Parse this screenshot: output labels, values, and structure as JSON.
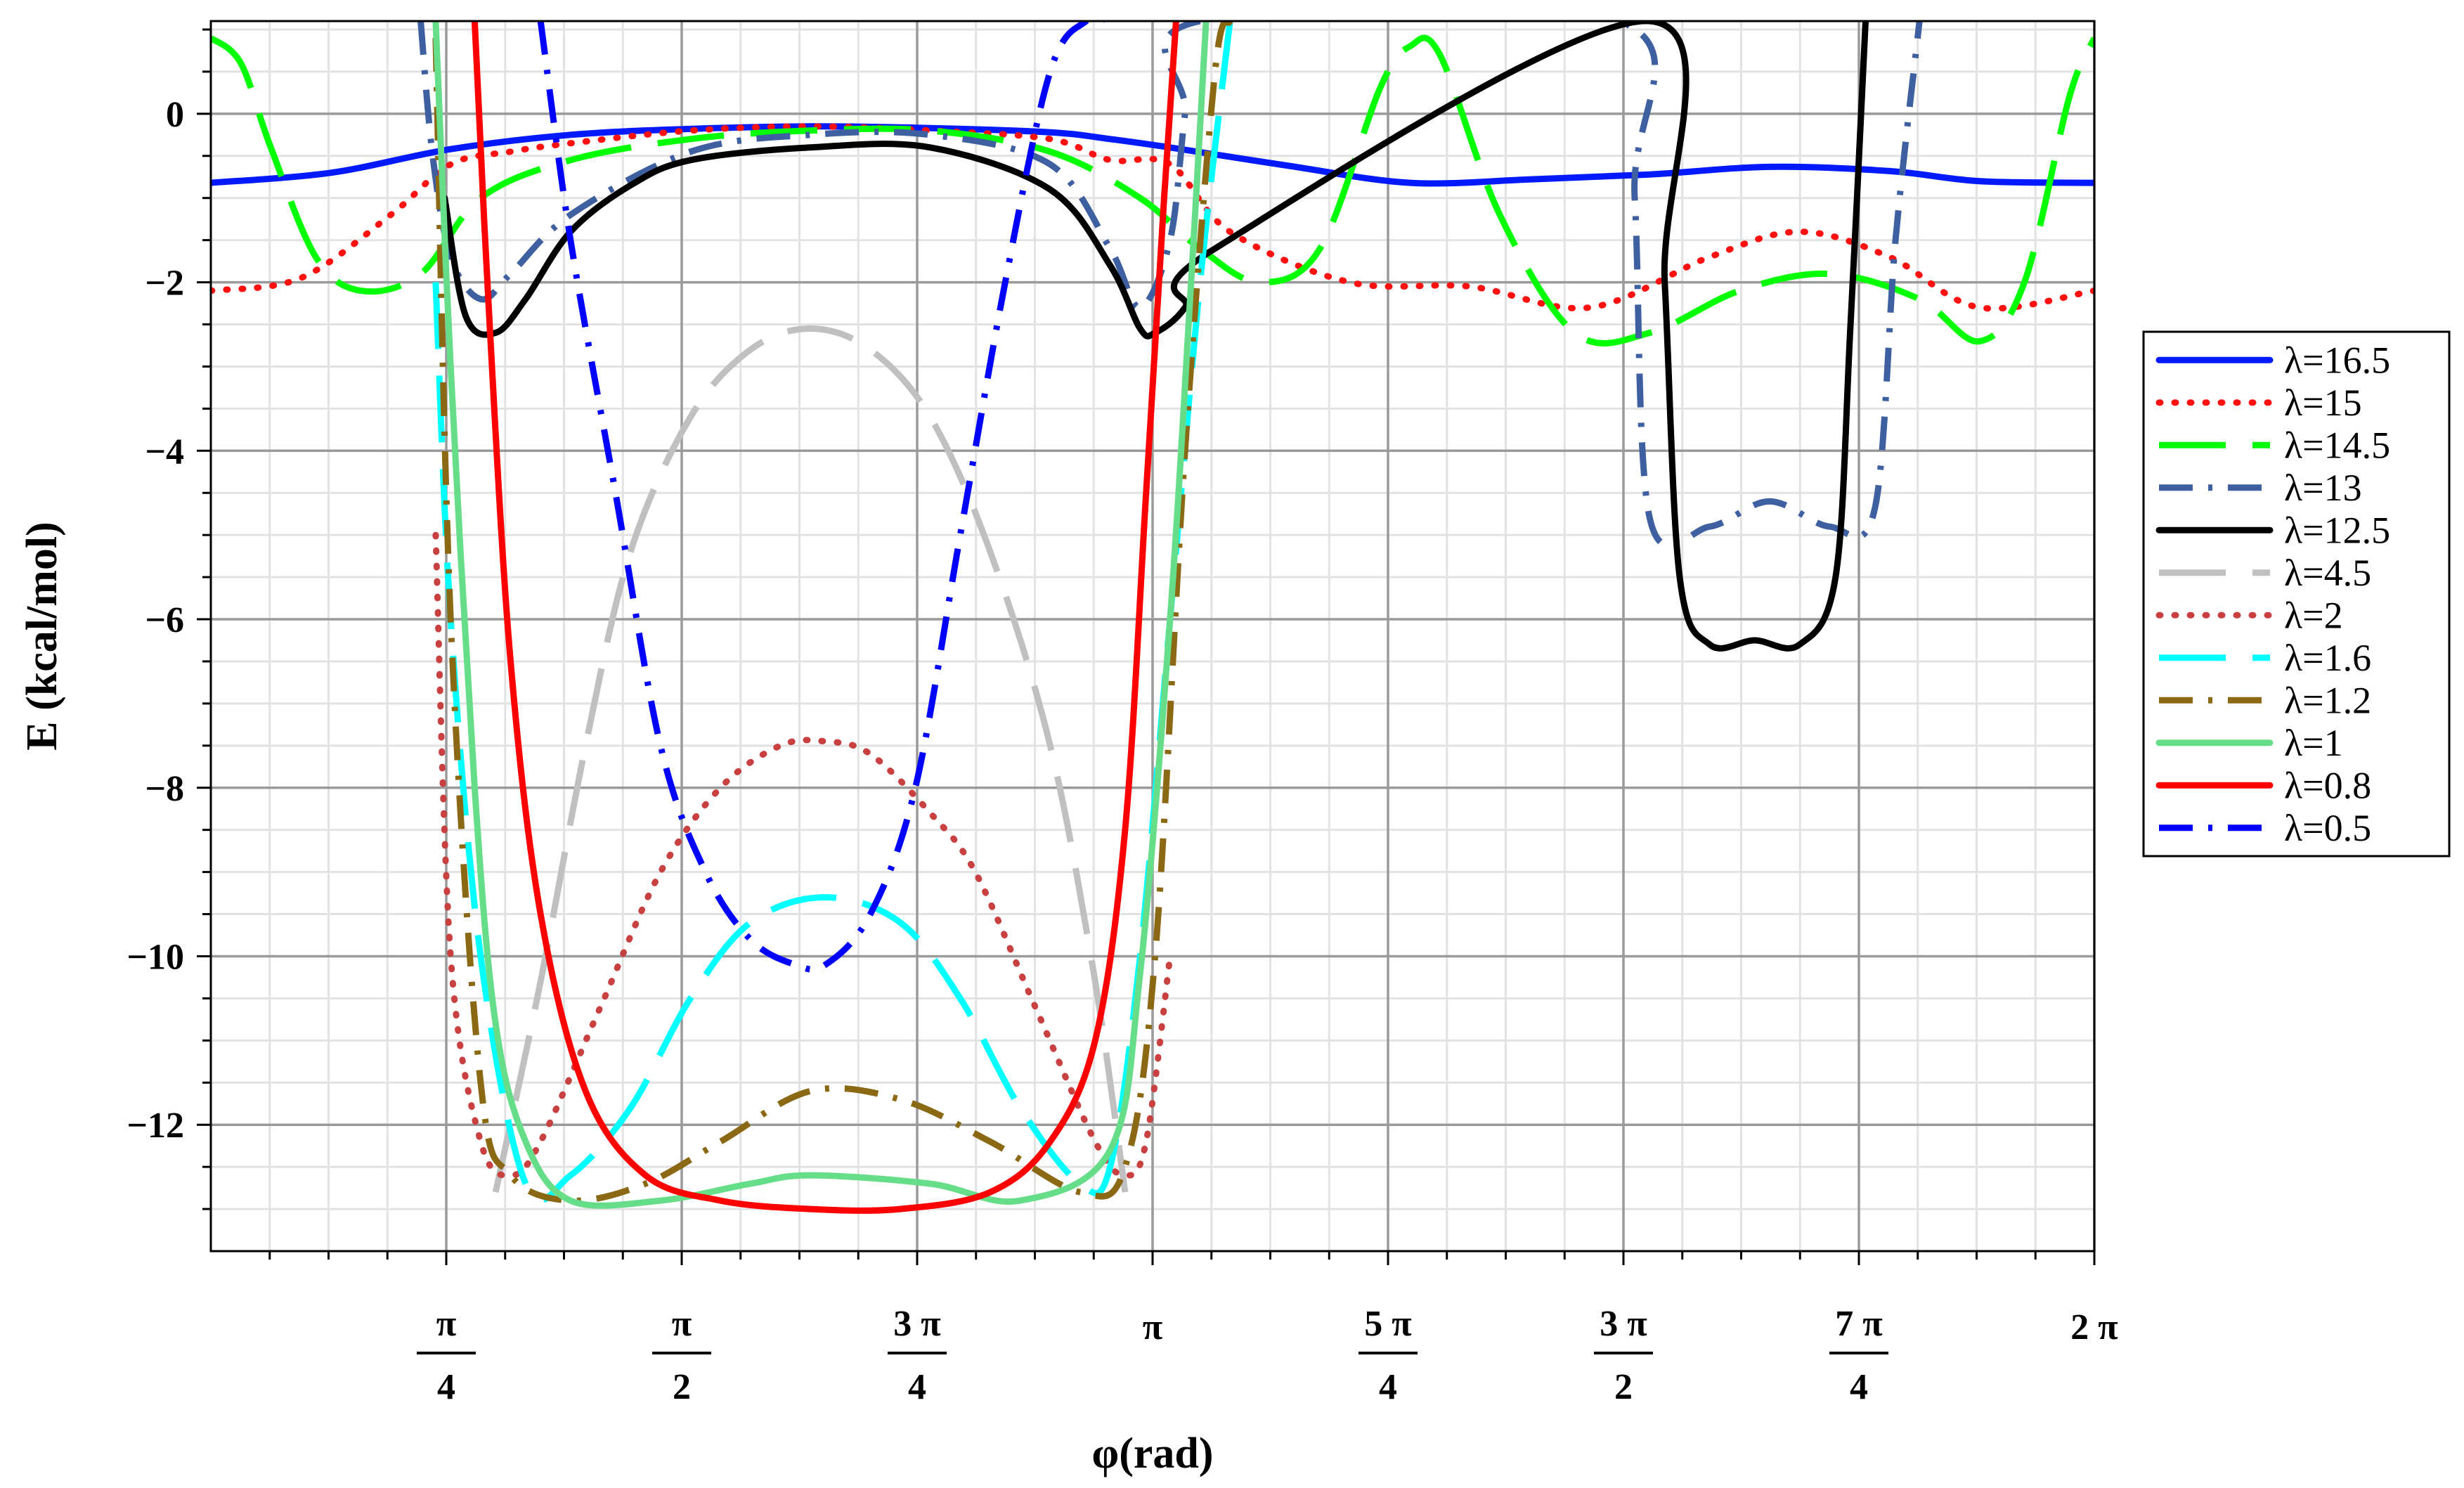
{
  "chart_data": {
    "type": "line",
    "xlabel": "φ(rad)",
    "ylabel": "E (kcal/mol)",
    "xlim": [
      0,
      6.2832
    ],
    "ylim": [
      -13.5,
      1.1
    ],
    "grid": true,
    "legend_position": "right",
    "x_ticks": [
      {
        "value": 0.7854,
        "num": "π",
        "den": "4"
      },
      {
        "value": 1.5708,
        "num": "π",
        "den": "2"
      },
      {
        "value": 2.3562,
        "num": "3 π",
        "den": "4"
      },
      {
        "value": 3.1416,
        "label": "π"
      },
      {
        "value": 3.927,
        "num": "5 π",
        "den": "4"
      },
      {
        "value": 4.7124,
        "num": "3 π",
        "den": "2"
      },
      {
        "value": 5.4978,
        "num": "7 π",
        "den": "4"
      },
      {
        "value": 6.2832,
        "label": "2 π"
      }
    ],
    "y_ticks": [
      {
        "value": 0,
        "label": "0"
      },
      {
        "value": -2,
        "label": "−2"
      },
      {
        "value": -4,
        "label": "−4"
      },
      {
        "value": -6,
        "label": "−6"
      },
      {
        "value": -8,
        "label": "−8"
      },
      {
        "value": -10,
        "label": "−10"
      },
      {
        "value": -12,
        "label": "−12"
      }
    ],
    "series": [
      {
        "name": "λ=16.5",
        "color": "#0019ff",
        "dash": "solid",
        "x": [
          0,
          0.4,
          0.8,
          1.2,
          1.6,
          2.0,
          2.4,
          2.8,
          3.0,
          3.2,
          3.6,
          4.0,
          4.4,
          4.8,
          5.2,
          5.6,
          5.9,
          6.2832
        ],
        "y": [
          -0.82,
          -0.7,
          -0.42,
          -0.25,
          -0.18,
          -0.15,
          -0.17,
          -0.22,
          -0.3,
          -0.4,
          -0.62,
          -0.82,
          -0.78,
          -0.72,
          -0.63,
          -0.68,
          -0.8,
          -0.82
        ]
      },
      {
        "name": "λ=15",
        "color": "#ff1010",
        "dash": "dot",
        "x": [
          0,
          0.3,
          0.6,
          0.8,
          1.0,
          1.2,
          1.6,
          2.0,
          2.4,
          2.8,
          3.0,
          3.2,
          3.4,
          3.8,
          4.2,
          4.6,
          5.0,
          5.3,
          5.6,
          5.9,
          6.2832
        ],
        "y": [
          -2.1,
          -1.95,
          -1.2,
          -0.6,
          -0.45,
          -0.35,
          -0.2,
          -0.15,
          -0.2,
          -0.3,
          -0.55,
          -0.6,
          -1.4,
          -2.0,
          -2.05,
          -2.3,
          -1.7,
          -1.4,
          -1.7,
          -2.3,
          -2.1
        ]
      },
      {
        "name": "λ=14.5",
        "color": "#00ff00",
        "dash": "longdash",
        "x": [
          0,
          0.1,
          0.2,
          0.35,
          0.5,
          0.7,
          0.9,
          1.2,
          1.6,
          2.0,
          2.4,
          2.8,
          3.1,
          3.3,
          3.5,
          3.7,
          3.9,
          4.0,
          4.1,
          4.3,
          4.55,
          4.8,
          5.1,
          5.4,
          5.7,
          5.9,
          6.05,
          6.2,
          6.2832
        ],
        "y": [
          0.9,
          0.6,
          -0.4,
          -1.7,
          -2.1,
          -1.9,
          -1.0,
          -0.55,
          -0.3,
          -0.2,
          -0.2,
          -0.45,
          -1.0,
          -1.6,
          -2.0,
          -1.6,
          0.3,
          0.8,
          0.7,
          -1.2,
          -2.6,
          -2.6,
          -2.1,
          -1.9,
          -2.2,
          -2.7,
          -2.0,
          0.2,
          0.9
        ]
      },
      {
        "name": "λ=13",
        "color": "#3e5fa0",
        "dash": "dashdot",
        "x": [
          0.7,
          0.74,
          0.8,
          0.9,
          1.0,
          1.2,
          1.6,
          2.0,
          2.4,
          2.8,
          3.0,
          3.1,
          3.2,
          3.25,
          3.3,
          4.7,
          4.75,
          4.8,
          5.0,
          5.2,
          5.4,
          5.55,
          5.62,
          5.7
        ],
        "y": [
          1.1,
          -0.5,
          -1.7,
          -2.2,
          -1.9,
          -1.2,
          -0.45,
          -0.25,
          -0.25,
          -0.6,
          -1.6,
          -2.3,
          -1.5,
          0.0,
          1.1,
          1.1,
          -1.0,
          -4.8,
          -4.9,
          -4.6,
          -4.9,
          -4.7,
          -1.5,
          1.1
        ]
      },
      {
        "name": "λ=12.5",
        "color": "#000000",
        "dash": "solid",
        "x": [
          0.78,
          0.85,
          0.95,
          1.05,
          1.2,
          1.4,
          1.6,
          2.0,
          2.4,
          2.8,
          3.0,
          3.1,
          3.15,
          3.25,
          3.35,
          4.8,
          4.85,
          4.9,
          5.0,
          5.15,
          5.3,
          5.42,
          5.47,
          5.52
        ],
        "y": [
          -1.0,
          -2.4,
          -2.6,
          -2.2,
          -1.4,
          -0.85,
          -0.55,
          -0.4,
          -0.4,
          -0.9,
          -1.8,
          -2.55,
          -2.6,
          -2.3,
          -1.6,
          1.1,
          -2.0,
          -5.5,
          -6.3,
          -6.25,
          -6.3,
          -5.5,
          -2.5,
          1.1
        ]
      },
      {
        "name": "λ=4.5",
        "color": "#c0c0c0",
        "dash": "longdash",
        "x": [
          0.95,
          1.1,
          1.25,
          1.4,
          1.6,
          1.8,
          2.0,
          2.2,
          2.4,
          2.6,
          2.8,
          2.95,
          3.05
        ],
        "y": [
          -12.8,
          -10.3,
          -7.5,
          -5.2,
          -3.6,
          -2.8,
          -2.55,
          -2.8,
          -3.6,
          -5.2,
          -7.5,
          -10.3,
          -12.8
        ]
      },
      {
        "name": "λ=2",
        "color": "#c84040",
        "dash": "dot",
        "x": [
          0.75,
          0.8,
          0.9,
          1.0,
          1.1,
          1.3,
          1.5,
          1.7,
          1.9,
          2.05,
          2.2,
          2.4,
          2.55,
          2.75,
          2.95,
          3.05,
          3.12,
          3.2
        ],
        "y": [
          -5.0,
          -10.0,
          -12.2,
          -12.6,
          -12.2,
          -10.6,
          -9.0,
          -8.0,
          -7.5,
          -7.45,
          -7.6,
          -8.3,
          -9.0,
          -10.6,
          -12.2,
          -12.6,
          -12.2,
          -10.0
        ]
      },
      {
        "name": "λ=1.6",
        "color": "#00ffff",
        "dash": "longdash",
        "x": [
          0.75,
          0.8,
          0.9,
          1.05,
          1.2,
          1.4,
          1.6,
          1.8,
          2.05,
          2.3,
          2.5,
          2.7,
          2.9,
          3.0,
          3.1,
          3.2,
          3.3,
          3.4
        ],
        "y": [
          -2.0,
          -6.0,
          -10.0,
          -12.7,
          -12.6,
          -11.8,
          -10.5,
          -9.6,
          -9.3,
          -9.6,
          -10.5,
          -11.8,
          -12.7,
          -12.5,
          -10.0,
          -6.0,
          -2.0,
          1.1
        ]
      },
      {
        "name": "λ=1.2",
        "color": "#8b6914",
        "dash": "dashdot",
        "x": [
          0.75,
          0.8,
          0.9,
          1.0,
          1.2,
          1.45,
          1.7,
          2.0,
          2.3,
          2.6,
          2.9,
          3.05,
          3.15,
          3.25,
          3.35,
          3.4
        ],
        "y": [
          0.9,
          -6.0,
          -11.5,
          -12.6,
          -12.9,
          -12.7,
          -12.2,
          -11.6,
          -11.7,
          -12.2,
          -12.8,
          -12.5,
          -10.0,
          -4.0,
          0.5,
          1.1
        ]
      },
      {
        "name": "λ=1",
        "color": "#66dd88",
        "dash": "solid",
        "x": [
          0.75,
          0.8,
          0.88,
          0.95,
          1.05,
          1.2,
          1.5,
          1.8,
          2.0,
          2.4,
          2.7,
          3.0,
          3.1,
          3.2,
          3.27,
          3.32
        ],
        "y": [
          1.1,
          -3.0,
          -8.0,
          -10.8,
          -12.2,
          -12.9,
          -12.9,
          -12.7,
          -12.6,
          -12.7,
          -12.9,
          -12.3,
          -10.2,
          -6.0,
          -2.0,
          1.1
        ]
      },
      {
        "name": "λ=0.8",
        "color": "#ff0000",
        "dash": "solid",
        "x": [
          0.88,
          0.93,
          1.0,
          1.1,
          1.25,
          1.45,
          1.7,
          2.0,
          2.3,
          2.6,
          2.8,
          2.95,
          3.05,
          3.12,
          3.18,
          3.22
        ],
        "y": [
          1.1,
          -2.5,
          -6.5,
          -9.5,
          -11.6,
          -12.6,
          -12.9,
          -13.0,
          -13.0,
          -12.8,
          -12.2,
          -11.0,
          -8.5,
          -4.5,
          -1.0,
          1.1
        ]
      },
      {
        "name": "λ=0.5",
        "color": "#0000ff",
        "dash": "dashdot",
        "x": [
          1.1,
          1.2,
          1.35,
          1.5,
          1.65,
          1.8,
          1.95,
          2.05,
          2.2,
          2.35,
          2.5,
          2.65,
          2.8,
          2.92,
          3.0
        ],
        "y": [
          1.1,
          -1.5,
          -4.5,
          -7.5,
          -9.0,
          -9.8,
          -10.1,
          -10.1,
          -9.5,
          -8.0,
          -5.0,
          -2.0,
          0.5,
          1.1,
          1.1
        ]
      }
    ]
  }
}
